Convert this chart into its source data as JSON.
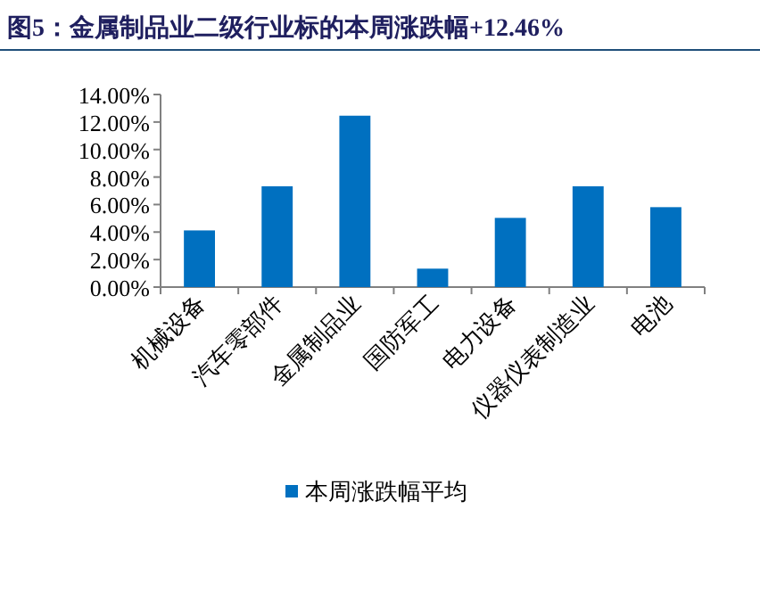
{
  "chart_data": {
    "type": "bar",
    "title": "图5：金属制品业二级行业标的本周涨跌幅+12.46%",
    "categories": [
      "机械设备",
      "汽车零部件",
      "金属制品业",
      "国防军工",
      "电力设备",
      "仪器仪表制造业",
      "电池"
    ],
    "series": [
      {
        "name": "本周涨跌幅平均",
        "color": "#0070c0",
        "values": [
          4.12,
          7.33,
          12.46,
          1.34,
          5.03,
          7.33,
          5.81
        ]
      }
    ],
    "ylim": [
      0,
      14
    ],
    "yticks": [
      {
        "value": 0,
        "label": "0.00%"
      },
      {
        "value": 2,
        "label": "2.00%"
      },
      {
        "value": 4,
        "label": "4.00%"
      },
      {
        "value": 6,
        "label": "6.00%"
      },
      {
        "value": 8,
        "label": "8.00%"
      },
      {
        "value": 10,
        "label": "10.00%"
      },
      {
        "value": 12,
        "label": "12.00%"
      },
      {
        "value": 14,
        "label": "14.00%"
      }
    ],
    "grid": false,
    "legend": "bottom"
  }
}
